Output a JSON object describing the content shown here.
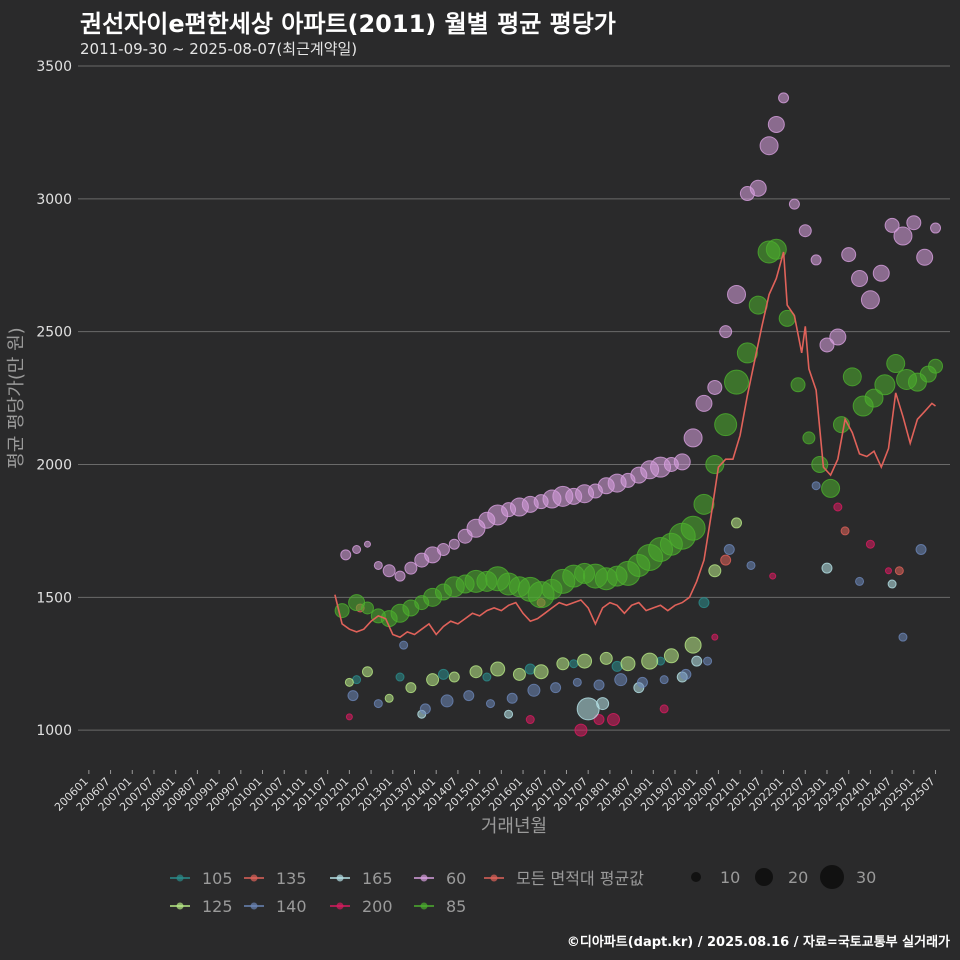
{
  "chart_data": {
    "type": "scatter",
    "title": "권선자이e편한세상 아파트(2011) 월별 평균 평당가",
    "subtitle": "2011-09-30 ~ 2025-08-07(최근계약일)",
    "xlabel": "거래년월",
    "ylabel": "평균 평당가(만 원)",
    "ylim": [
      850,
      3500
    ],
    "yticks": [
      1000,
      1500,
      2000,
      2500,
      3000,
      3500
    ],
    "xticks": [
      "200601",
      "200607",
      "200701",
      "200707",
      "200801",
      "200807",
      "200901",
      "200907",
      "201001",
      "201007",
      "201101",
      "201107",
      "201201",
      "201207",
      "201301",
      "201307",
      "201401",
      "201407",
      "201501",
      "201507",
      "201601",
      "201607",
      "201701",
      "201707",
      "201801",
      "201807",
      "201901",
      "201907",
      "202001",
      "202007",
      "202101",
      "202107",
      "202201",
      "202207",
      "202301",
      "202307",
      "202401",
      "202407",
      "202501",
      "202507"
    ],
    "x_start": "2006-01",
    "x_end": "2025-08",
    "legend_size_title": "",
    "legend_sizes": [
      10,
      20,
      30
    ],
    "series": [
      {
        "name": "105",
        "color": "#2a8d8c"
      },
      {
        "name": "125",
        "color": "#b8e986"
      },
      {
        "name": "135",
        "color": "#e0625a"
      },
      {
        "name": "140",
        "color": "#6b86b8"
      },
      {
        "name": "165",
        "color": "#b6e3e8"
      },
      {
        "name": "200",
        "color": "#d81b60"
      },
      {
        "name": "60",
        "color": "#d8a0e0"
      },
      {
        "name": "85",
        "color": "#4caf2e"
      },
      {
        "name": "모든 면적대 평균값",
        "color": "#e0625a",
        "line": true
      }
    ],
    "series_points": {
      "60": [
        [
          "2011-12",
          1660,
          5
        ],
        [
          "2012-03",
          1680,
          4
        ],
        [
          "2012-06",
          1700,
          3
        ],
        [
          "2012-09",
          1620,
          4
        ],
        [
          "2012-12",
          1600,
          6
        ],
        [
          "2013-03",
          1580,
          5
        ],
        [
          "2013-06",
          1610,
          6
        ],
        [
          "2013-09",
          1640,
          7
        ],
        [
          "2013-12",
          1660,
          8
        ],
        [
          "2014-03",
          1680,
          6
        ],
        [
          "2014-06",
          1700,
          5
        ],
        [
          "2014-09",
          1730,
          7
        ],
        [
          "2014-12",
          1760,
          9
        ],
        [
          "2015-03",
          1790,
          8
        ],
        [
          "2015-06",
          1810,
          10
        ],
        [
          "2015-09",
          1830,
          7
        ],
        [
          "2015-12",
          1840,
          9
        ],
        [
          "2016-03",
          1850,
          8
        ],
        [
          "2016-06",
          1860,
          7
        ],
        [
          "2016-09",
          1870,
          9
        ],
        [
          "2016-12",
          1880,
          10
        ],
        [
          "2017-03",
          1880,
          8
        ],
        [
          "2017-06",
          1890,
          9
        ],
        [
          "2017-09",
          1900,
          7
        ],
        [
          "2017-12",
          1920,
          8
        ],
        [
          "2018-03",
          1930,
          9
        ],
        [
          "2018-06",
          1940,
          7
        ],
        [
          "2018-09",
          1960,
          8
        ],
        [
          "2018-12",
          1980,
          9
        ],
        [
          "2019-03",
          1990,
          10
        ],
        [
          "2019-06",
          2000,
          7
        ],
        [
          "2019-09",
          2010,
          8
        ],
        [
          "2019-12",
          2100,
          9
        ],
        [
          "2020-03",
          2230,
          8
        ],
        [
          "2020-06",
          2290,
          7
        ],
        [
          "2020-09",
          2500,
          6
        ],
        [
          "2020-12",
          2640,
          9
        ],
        [
          "2021-03",
          3020,
          7
        ],
        [
          "2021-06",
          3040,
          8
        ],
        [
          "2021-09",
          3200,
          9
        ],
        [
          "2021-11",
          3280,
          8
        ],
        [
          "2022-01",
          3380,
          5
        ],
        [
          "2022-04",
          2980,
          5
        ],
        [
          "2022-07",
          2880,
          6
        ],
        [
          "2022-10",
          2770,
          5
        ],
        [
          "2023-01",
          2450,
          7
        ],
        [
          "2023-04",
          2480,
          8
        ],
        [
          "2023-07",
          2790,
          7
        ],
        [
          "2023-10",
          2700,
          8
        ],
        [
          "2024-01",
          2620,
          9
        ],
        [
          "2024-04",
          2720,
          8
        ],
        [
          "2024-07",
          2900,
          7
        ],
        [
          "2024-10",
          2860,
          9
        ],
        [
          "2025-01",
          2910,
          7
        ],
        [
          "2025-04",
          2780,
          8
        ],
        [
          "2025-07",
          2890,
          5
        ]
      ],
      "85": [
        [
          "2011-11",
          1450,
          7
        ],
        [
          "2012-03",
          1480,
          8
        ],
        [
          "2012-06",
          1460,
          6
        ],
        [
          "2012-09",
          1430,
          7
        ],
        [
          "2012-12",
          1420,
          8
        ],
        [
          "2013-03",
          1440,
          9
        ],
        [
          "2013-06",
          1460,
          8
        ],
        [
          "2013-09",
          1480,
          7
        ],
        [
          "2013-12",
          1500,
          9
        ],
        [
          "2014-03",
          1520,
          8
        ],
        [
          "2014-06",
          1540,
          10
        ],
        [
          "2014-09",
          1550,
          9
        ],
        [
          "2014-12",
          1560,
          11
        ],
        [
          "2015-03",
          1560,
          10
        ],
        [
          "2015-06",
          1570,
          12
        ],
        [
          "2015-09",
          1550,
          11
        ],
        [
          "2015-12",
          1540,
          10
        ],
        [
          "2016-03",
          1530,
          12
        ],
        [
          "2016-06",
          1510,
          13
        ],
        [
          "2016-09",
          1530,
          10
        ],
        [
          "2016-12",
          1560,
          12
        ],
        [
          "2017-03",
          1580,
          11
        ],
        [
          "2017-06",
          1590,
          10
        ],
        [
          "2017-09",
          1580,
          12
        ],
        [
          "2017-12",
          1570,
          11
        ],
        [
          "2018-03",
          1580,
          10
        ],
        [
          "2018-06",
          1590,
          12
        ],
        [
          "2018-09",
          1620,
          11
        ],
        [
          "2018-12",
          1650,
          13
        ],
        [
          "2019-03",
          1680,
          12
        ],
        [
          "2019-06",
          1700,
          11
        ],
        [
          "2019-09",
          1730,
          13
        ],
        [
          "2019-12",
          1760,
          12
        ],
        [
          "2020-03",
          1850,
          10
        ],
        [
          "2020-06",
          2000,
          9
        ],
        [
          "2020-09",
          2150,
          11
        ],
        [
          "2020-12",
          2310,
          12
        ],
        [
          "2021-03",
          2420,
          10
        ],
        [
          "2021-06",
          2600,
          9
        ],
        [
          "2021-09",
          2800,
          11
        ],
        [
          "2021-11",
          2810,
          10
        ],
        [
          "2022-02",
          2550,
          8
        ],
        [
          "2022-05",
          2300,
          7
        ],
        [
          "2022-08",
          2100,
          6
        ],
        [
          "2022-11",
          2000,
          8
        ],
        [
          "2023-02",
          1910,
          9
        ],
        [
          "2023-05",
          2150,
          8
        ],
        [
          "2023-08",
          2330,
          9
        ],
        [
          "2023-11",
          2220,
          10
        ],
        [
          "2024-02",
          2250,
          9
        ],
        [
          "2024-05",
          2300,
          10
        ],
        [
          "2024-08",
          2380,
          9
        ],
        [
          "2024-11",
          2320,
          10
        ],
        [
          "2025-02",
          2310,
          9
        ],
        [
          "2025-05",
          2340,
          8
        ],
        [
          "2025-07",
          2370,
          7
        ]
      ],
      "125": [
        [
          "2012-01",
          1180,
          4
        ],
        [
          "2012-06",
          1220,
          5
        ],
        [
          "2012-12",
          1120,
          4
        ],
        [
          "2013-06",
          1160,
          5
        ],
        [
          "2013-12",
          1190,
          6
        ],
        [
          "2014-06",
          1200,
          5
        ],
        [
          "2014-12",
          1220,
          6
        ],
        [
          "2015-06",
          1230,
          7
        ],
        [
          "2015-12",
          1210,
          6
        ],
        [
          "2016-06",
          1220,
          7
        ],
        [
          "2016-12",
          1250,
          6
        ],
        [
          "2017-06",
          1260,
          7
        ],
        [
          "2017-12",
          1270,
          6
        ],
        [
          "2018-06",
          1250,
          7
        ],
        [
          "2018-12",
          1260,
          8
        ],
        [
          "2019-06",
          1280,
          7
        ],
        [
          "2019-12",
          1320,
          8
        ],
        [
          "2020-06",
          1600,
          6
        ],
        [
          "2020-12",
          1780,
          5
        ]
      ],
      "105": [
        [
          "2012-03",
          1190,
          4
        ],
        [
          "2013-03",
          1200,
          4
        ],
        [
          "2014-03",
          1210,
          5
        ],
        [
          "2015-03",
          1200,
          4
        ],
        [
          "2016-03",
          1230,
          5
        ],
        [
          "2017-03",
          1250,
          4
        ],
        [
          "2018-03",
          1240,
          5
        ],
        [
          "2019-03",
          1260,
          4
        ],
        [
          "2020-03",
          1480,
          5
        ]
      ],
      "140": [
        [
          "2012-02",
          1130,
          5
        ],
        [
          "2012-09",
          1100,
          4
        ],
        [
          "2013-04",
          1320,
          4
        ],
        [
          "2013-10",
          1080,
          5
        ],
        [
          "2014-04",
          1110,
          6
        ],
        [
          "2014-10",
          1130,
          5
        ],
        [
          "2015-04",
          1100,
          4
        ],
        [
          "2015-10",
          1120,
          5
        ],
        [
          "2016-04",
          1150,
          6
        ],
        [
          "2016-10",
          1160,
          5
        ],
        [
          "2017-04",
          1180,
          4
        ],
        [
          "2017-10",
          1170,
          5
        ],
        [
          "2018-04",
          1190,
          6
        ],
        [
          "2018-10",
          1180,
          5
        ],
        [
          "2019-04",
          1190,
          4
        ],
        [
          "2019-10",
          1210,
          5
        ],
        [
          "2020-04",
          1260,
          4
        ],
        [
          "2020-10",
          1680,
          5
        ],
        [
          "2021-04",
          1620,
          4
        ],
        [
          "2022-10",
          1920,
          4
        ],
        [
          "2023-10",
          1560,
          4
        ],
        [
          "2024-10",
          1350,
          4
        ],
        [
          "2025-03",
          1680,
          5
        ]
      ],
      "165": [
        [
          "2013-09",
          1060,
          4
        ],
        [
          "2015-09",
          1060,
          4
        ],
        [
          "2017-07",
          1080,
          11
        ],
        [
          "2017-11",
          1100,
          6
        ],
        [
          "2018-09",
          1160,
          5
        ],
        [
          "2019-09",
          1200,
          5
        ],
        [
          "2020-01",
          1260,
          5
        ],
        [
          "2023-01",
          1610,
          5
        ],
        [
          "2024-07",
          1550,
          4
        ]
      ],
      "200": [
        [
          "2012-01",
          1050,
          3
        ],
        [
          "2016-03",
          1040,
          4
        ],
        [
          "2017-05",
          1000,
          6
        ],
        [
          "2017-10",
          1040,
          5
        ],
        [
          "2018-02",
          1040,
          6
        ],
        [
          "2019-04",
          1080,
          4
        ],
        [
          "2020-06",
          1350,
          3
        ],
        [
          "2021-10",
          1580,
          3
        ],
        [
          "2023-04",
          1840,
          4
        ],
        [
          "2024-01",
          1700,
          4
        ],
        [
          "2024-06",
          1600,
          3
        ]
      ],
      "135": [
        [
          "2012-04",
          1460,
          4
        ],
        [
          "2016-06",
          1480,
          4
        ],
        [
          "2020-09",
          1640,
          5
        ],
        [
          "2023-06",
          1750,
          4
        ],
        [
          "2024-09",
          1600,
          4
        ]
      ]
    },
    "avg_line": [
      [
        "2011-09",
        1510
      ],
      [
        "2011-11",
        1400
      ],
      [
        "2012-01",
        1380
      ],
      [
        "2012-03",
        1370
      ],
      [
        "2012-05",
        1380
      ],
      [
        "2012-07",
        1410
      ],
      [
        "2012-09",
        1430
      ],
      [
        "2012-11",
        1420
      ],
      [
        "2013-01",
        1360
      ],
      [
        "2013-03",
        1350
      ],
      [
        "2013-05",
        1370
      ],
      [
        "2013-07",
        1360
      ],
      [
        "2013-09",
        1380
      ],
      [
        "2013-11",
        1400
      ],
      [
        "2014-01",
        1360
      ],
      [
        "2014-03",
        1390
      ],
      [
        "2014-05",
        1410
      ],
      [
        "2014-07",
        1400
      ],
      [
        "2014-09",
        1420
      ],
      [
        "2014-11",
        1440
      ],
      [
        "2015-01",
        1430
      ],
      [
        "2015-03",
        1450
      ],
      [
        "2015-05",
        1460
      ],
      [
        "2015-07",
        1450
      ],
      [
        "2015-09",
        1470
      ],
      [
        "2015-11",
        1480
      ],
      [
        "2016-01",
        1440
      ],
      [
        "2016-03",
        1410
      ],
      [
        "2016-05",
        1420
      ],
      [
        "2016-07",
        1440
      ],
      [
        "2016-09",
        1460
      ],
      [
        "2016-11",
        1480
      ],
      [
        "2017-01",
        1470
      ],
      [
        "2017-03",
        1480
      ],
      [
        "2017-05",
        1490
      ],
      [
        "2017-07",
        1460
      ],
      [
        "2017-09",
        1400
      ],
      [
        "2017-11",
        1460
      ],
      [
        "2018-01",
        1480
      ],
      [
        "2018-03",
        1470
      ],
      [
        "2018-05",
        1440
      ],
      [
        "2018-07",
        1470
      ],
      [
        "2018-09",
        1480
      ],
      [
        "2018-11",
        1450
      ],
      [
        "2019-01",
        1460
      ],
      [
        "2019-03",
        1470
      ],
      [
        "2019-05",
        1450
      ],
      [
        "2019-07",
        1470
      ],
      [
        "2019-09",
        1480
      ],
      [
        "2019-11",
        1500
      ],
      [
        "2020-01",
        1560
      ],
      [
        "2020-03",
        1640
      ],
      [
        "2020-05",
        1810
      ],
      [
        "2020-07",
        1990
      ],
      [
        "2020-09",
        2020
      ],
      [
        "2020-11",
        2020
      ],
      [
        "2021-01",
        2110
      ],
      [
        "2021-03",
        2260
      ],
      [
        "2021-05",
        2390
      ],
      [
        "2021-07",
        2520
      ],
      [
        "2021-09",
        2640
      ],
      [
        "2021-11",
        2700
      ],
      [
        "2022-01",
        2800
      ],
      [
        "2022-02",
        2600
      ],
      [
        "2022-04",
        2560
      ],
      [
        "2022-06",
        2420
      ],
      [
        "2022-07",
        2520
      ],
      [
        "2022-08",
        2360
      ],
      [
        "2022-10",
        2280
      ],
      [
        "2022-12",
        1990
      ],
      [
        "2023-02",
        1960
      ],
      [
        "2023-04",
        2020
      ],
      [
        "2023-06",
        2170
      ],
      [
        "2023-08",
        2120
      ],
      [
        "2023-10",
        2040
      ],
      [
        "2023-12",
        2030
      ],
      [
        "2024-02",
        2050
      ],
      [
        "2024-04",
        1990
      ],
      [
        "2024-06",
        2060
      ],
      [
        "2024-08",
        2270
      ],
      [
        "2024-10",
        2180
      ],
      [
        "2024-12",
        2080
      ],
      [
        "2025-02",
        2170
      ],
      [
        "2025-04",
        2200
      ],
      [
        "2025-06",
        2230
      ],
      [
        "2025-07",
        2220
      ]
    ]
  },
  "footer": "©디아파트(dapt.kr) / 2025.08.16 / 자료=국토교통부 실거래가"
}
